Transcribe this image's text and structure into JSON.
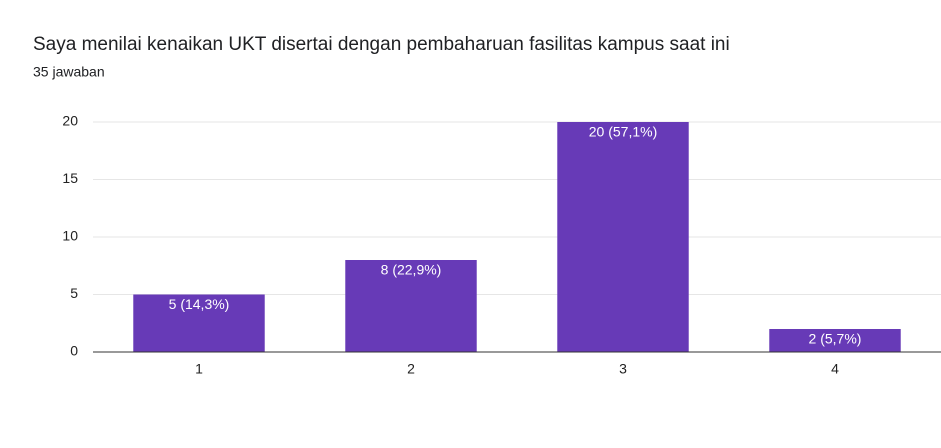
{
  "chart_data": {
    "type": "bar",
    "title": "Saya menilai kenaikan UKT disertai dengan pembaharuan fasilitas kampus saat ini",
    "subtitle": "35 jawaban",
    "categories": [
      "1",
      "2",
      "3",
      "4"
    ],
    "values": [
      5,
      8,
      20,
      2
    ],
    "value_labels": [
      "5 (14,3%)",
      "8 (22,9%)",
      "20 (57,1%)",
      "2 (5,7%)"
    ],
    "color": "#673ab7",
    "ylim": [
      0,
      20
    ],
    "yticks": [
      0,
      5,
      10,
      15,
      20
    ],
    "grid": true
  }
}
